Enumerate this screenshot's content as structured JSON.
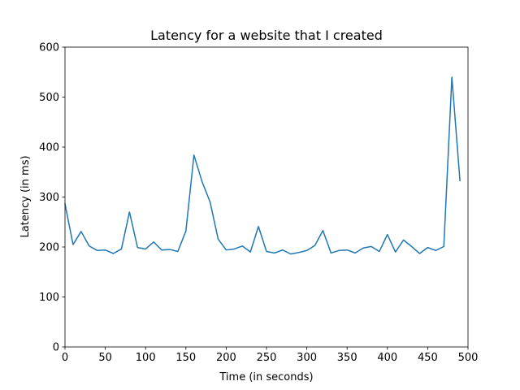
{
  "chart_data": {
    "type": "line",
    "title": "Latency for a website that I created",
    "xlabel": "Time (in seconds)",
    "ylabel": "Latency (in ms)",
    "xlim": [
      0,
      500
    ],
    "ylim": [
      0,
      600
    ],
    "xticks": [
      0,
      50,
      100,
      150,
      200,
      250,
      300,
      350,
      400,
      450,
      500
    ],
    "yticks": [
      0,
      100,
      200,
      300,
      400,
      500,
      600
    ],
    "grid": false,
    "legend": "none",
    "line_color": "#1f77b4",
    "series": [
      {
        "x": [
          0,
          10,
          20,
          30,
          40,
          50,
          60,
          70,
          80,
          90,
          100,
          110,
          120,
          130,
          140,
          150,
          160,
          170,
          180,
          190,
          200,
          210,
          220,
          230,
          240,
          250,
          260,
          270,
          280,
          290,
          300,
          310,
          320,
          330,
          340,
          350,
          360,
          370,
          380,
          390,
          400,
          410,
          420,
          430,
          440,
          450,
          460,
          470,
          480,
          490
        ],
        "y": [
          286,
          205,
          231,
          202,
          193,
          194,
          187,
          196,
          270,
          199,
          196,
          210,
          194,
          195,
          191,
          232,
          384,
          331,
          290,
          216,
          194,
          196,
          202,
          190,
          241,
          191,
          188,
          194,
          186,
          189,
          193,
          203,
          233,
          188,
          193,
          194,
          188,
          198,
          201,
          191,
          225,
          190,
          214,
          201,
          187,
          199,
          193,
          201,
          540,
          333
        ]
      }
    ]
  }
}
